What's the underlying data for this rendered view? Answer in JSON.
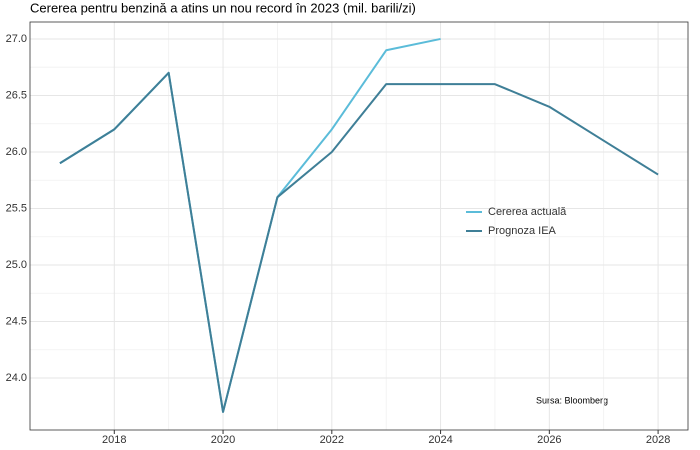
{
  "chart_data": {
    "type": "line",
    "title": "Cererea pentru benzină a atins un nou record în 2023 (mil. barili/zi)",
    "annotation": "Sursa: Bloomberg",
    "x": [
      2017,
      2018,
      2019,
      2020,
      2021,
      2022,
      2023,
      2024,
      2025,
      2026,
      2027,
      2028
    ],
    "series": [
      {
        "name": "Cererea actuală",
        "color": "#5bbcd9",
        "values": [
          25.9,
          26.2,
          26.7,
          23.7,
          25.6,
          26.2,
          26.9,
          27.0,
          null,
          null,
          null,
          null
        ]
      },
      {
        "name": "Prognoza IEA",
        "color": "#3f7f97",
        "values": [
          25.9,
          26.2,
          26.7,
          23.7,
          25.6,
          26.0,
          26.6,
          26.6,
          26.6,
          26.4,
          26.1,
          25.8
        ]
      }
    ],
    "xlim": [
      2016.45,
      2028.55
    ],
    "xticks": [
      2018,
      2020,
      2022,
      2024,
      2026,
      2028
    ],
    "ylim": [
      23.54,
      27.15
    ],
    "yticks": [
      {
        "value": 24,
        "label": "24.0"
      },
      {
        "value": 24.5,
        "label": "24.5"
      },
      {
        "value": 25,
        "label": "25.0"
      },
      {
        "value": 25.5,
        "label": "25.5"
      },
      {
        "value": 26,
        "label": "26.0"
      },
      {
        "value": 26.5,
        "label": "26.5"
      },
      {
        "value": 27,
        "label": "27.0"
      }
    ],
    "grid": true,
    "legend_position": "right"
  }
}
